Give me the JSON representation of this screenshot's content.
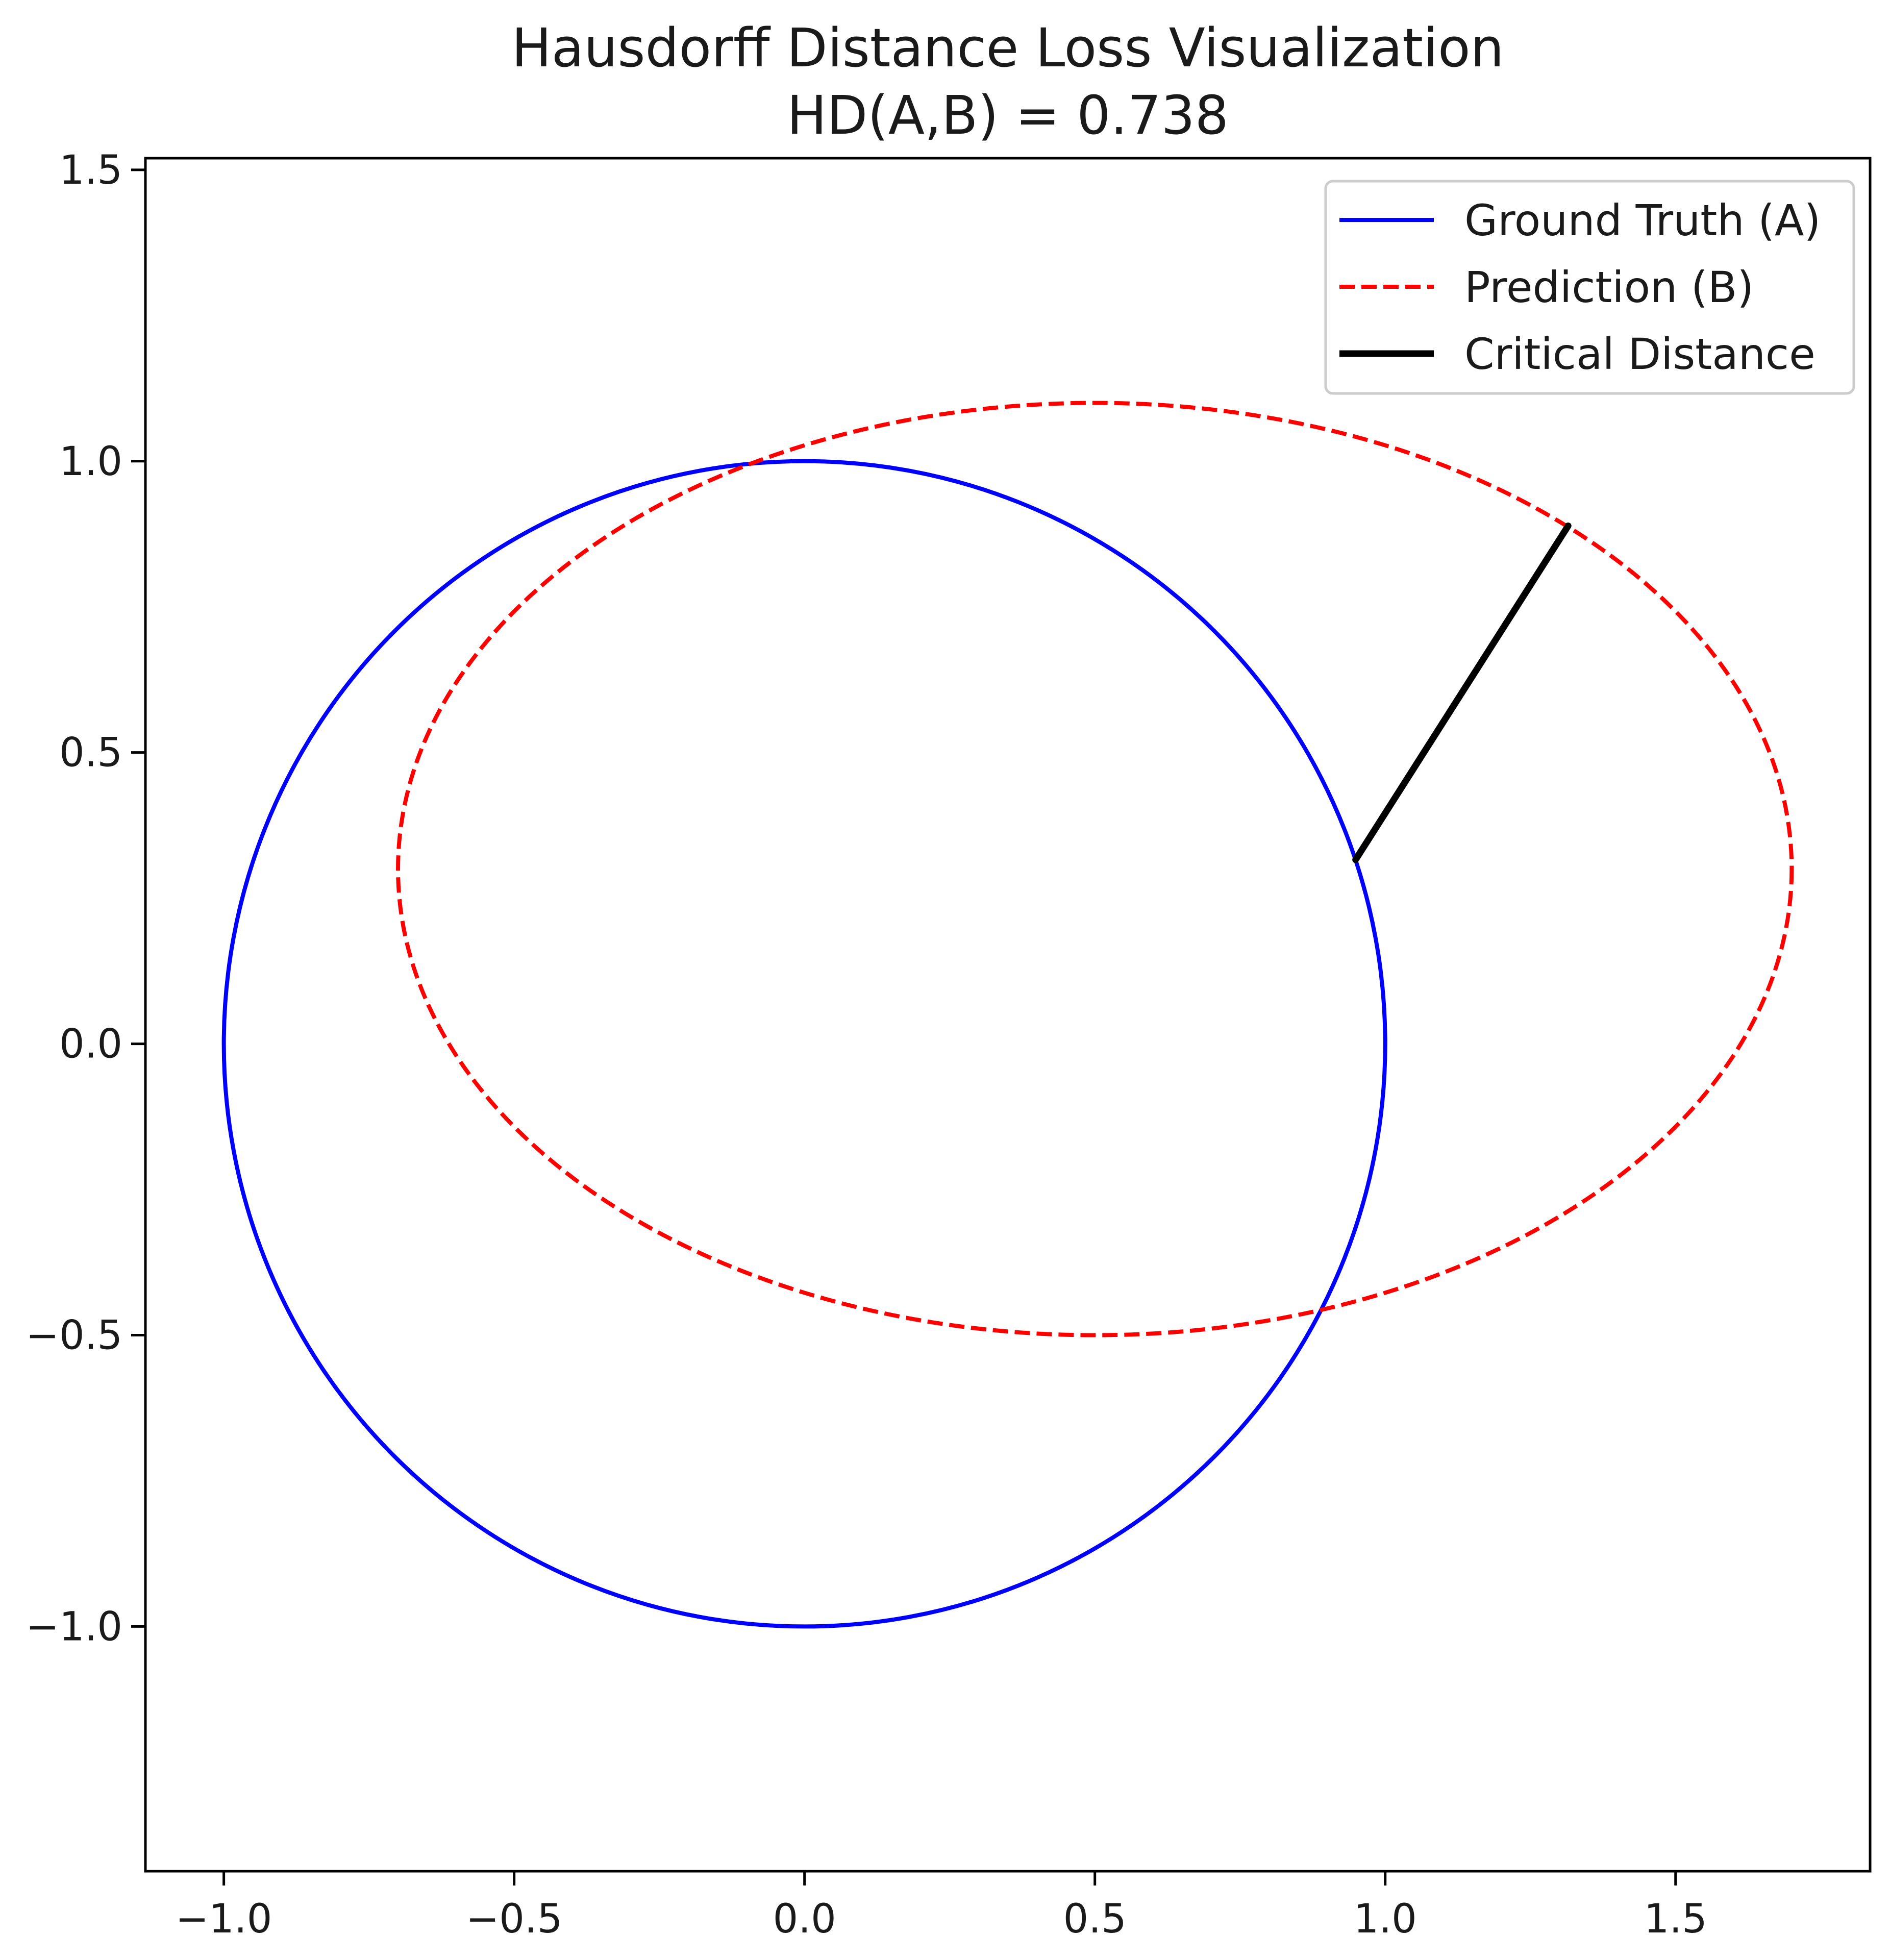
{
  "chart_data": {
    "type": "line",
    "title": "Hausdorff Distance Loss Visualization",
    "subtitle": "HD(A,B) = 0.738",
    "xlabel": "",
    "ylabel": "",
    "xlim": [
      -1.135,
      1.835
    ],
    "ylim": [
      -1.42,
      1.52
    ],
    "xticks": [
      -1.0,
      -0.5,
      0.0,
      0.5,
      1.0,
      1.5
    ],
    "xtick_labels": [
      "−1.0",
      "−0.5",
      "0.0",
      "0.5",
      "1.0",
      "1.5"
    ],
    "yticks": [
      -1.0,
      -0.5,
      0.0,
      0.5,
      1.0,
      1.5
    ],
    "ytick_labels": [
      "−1.0",
      "−0.5",
      "0.0",
      "0.5",
      "1.0",
      "1.5"
    ],
    "grid": false,
    "legend_position": "top-right",
    "series": [
      {
        "name": "Ground Truth (A)",
        "color": "#0000ff",
        "style": "solid",
        "shape": "circle",
        "center": [
          0.0,
          0.0
        ],
        "radius": [
          1.0,
          1.0
        ]
      },
      {
        "name": "Prediction (B)",
        "color": "#ff0000",
        "style": "dashed",
        "shape": "ellipse",
        "center": [
          0.5,
          0.3
        ],
        "radius": [
          1.2,
          0.8
        ]
      },
      {
        "name": "Critical Distance",
        "color": "#000000",
        "style": "solid",
        "shape": "segment",
        "x": [
          0.949,
          1.315
        ],
        "y": [
          0.316,
          0.889
        ]
      }
    ]
  }
}
